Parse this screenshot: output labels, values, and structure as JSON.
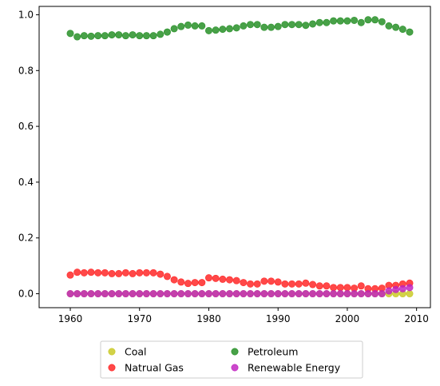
{
  "chart_data": {
    "type": "scatter",
    "title": "",
    "xlabel": "",
    "ylabel": "",
    "xlim": [
      1955.5,
      2012
    ],
    "ylim": [
      -0.05,
      1.03
    ],
    "xticks": [
      1960,
      1970,
      1980,
      1990,
      2000,
      2010
    ],
    "yticks": [
      0.0,
      0.2,
      0.4,
      0.6,
      0.8,
      1.0
    ],
    "xtick_labels": [
      "1960",
      "1970",
      "1980",
      "1990",
      "2000",
      "2010"
    ],
    "ytick_labels": [
      "0.0",
      "0.2",
      "0.4",
      "0.6",
      "0.8",
      "1.0"
    ],
    "grid": false,
    "legend": "lower-center-outside",
    "x": [
      1960,
      1961,
      1962,
      1963,
      1964,
      1965,
      1966,
      1967,
      1968,
      1969,
      1970,
      1971,
      1972,
      1973,
      1974,
      1975,
      1976,
      1977,
      1978,
      1979,
      1980,
      1981,
      1982,
      1983,
      1984,
      1985,
      1986,
      1987,
      1988,
      1989,
      1990,
      1991,
      1992,
      1993,
      1994,
      1995,
      1996,
      1997,
      1998,
      1999,
      2000,
      2001,
      2002,
      2003,
      2004,
      2005,
      2006,
      2007,
      2008,
      2009
    ],
    "series": [
      {
        "name": "Coal",
        "color": "#c8c820",
        "values": [
          0,
          0,
          0,
          0,
          0,
          0,
          0,
          0,
          0,
          0,
          0,
          0,
          0,
          0,
          0,
          0,
          0,
          0,
          0,
          0,
          0,
          0,
          0,
          0,
          0,
          0,
          0,
          0,
          0,
          0,
          0,
          0,
          0,
          0,
          0,
          0,
          0,
          0,
          0,
          0,
          0,
          0,
          0,
          0,
          0,
          0,
          0,
          0,
          0,
          0
        ]
      },
      {
        "name": "Natrual Gas",
        "color": "#ff2020",
        "values": [
          0.067,
          0.077,
          0.075,
          0.077,
          0.075,
          0.075,
          0.072,
          0.072,
          0.075,
          0.072,
          0.075,
          0.075,
          0.075,
          0.07,
          0.062,
          0.05,
          0.042,
          0.037,
          0.04,
          0.04,
          0.057,
          0.055,
          0.052,
          0.05,
          0.047,
          0.04,
          0.035,
          0.035,
          0.045,
          0.045,
          0.042,
          0.035,
          0.035,
          0.035,
          0.038,
          0.033,
          0.028,
          0.028,
          0.022,
          0.022,
          0.022,
          0.02,
          0.028,
          0.018,
          0.018,
          0.02,
          0.03,
          0.03,
          0.035,
          0.038
        ]
      },
      {
        "name": "Petroleum",
        "color": "#208c20",
        "values": [
          0.933,
          0.921,
          0.925,
          0.923,
          0.925,
          0.925,
          0.928,
          0.928,
          0.925,
          0.928,
          0.925,
          0.925,
          0.925,
          0.93,
          0.938,
          0.95,
          0.958,
          0.963,
          0.96,
          0.96,
          0.943,
          0.945,
          0.948,
          0.95,
          0.953,
          0.96,
          0.965,
          0.965,
          0.955,
          0.955,
          0.958,
          0.965,
          0.965,
          0.965,
          0.962,
          0.967,
          0.972,
          0.972,
          0.978,
          0.978,
          0.978,
          0.98,
          0.972,
          0.982,
          0.982,
          0.975,
          0.96,
          0.955,
          0.948,
          0.938
        ]
      },
      {
        "name": "Renewable Energy",
        "color": "#c020c0",
        "values": [
          0,
          0,
          0,
          0,
          0,
          0,
          0,
          0,
          0,
          0,
          0,
          0,
          0,
          0,
          0,
          0,
          0,
          0,
          0,
          0,
          0,
          0,
          0,
          0,
          0,
          0,
          0,
          0,
          0,
          0,
          0,
          0,
          0,
          0,
          0,
          0,
          0,
          0,
          0,
          0,
          0,
          0,
          0,
          0,
          0,
          0,
          0.01,
          0.015,
          0.018,
          0.022
        ]
      }
    ]
  }
}
